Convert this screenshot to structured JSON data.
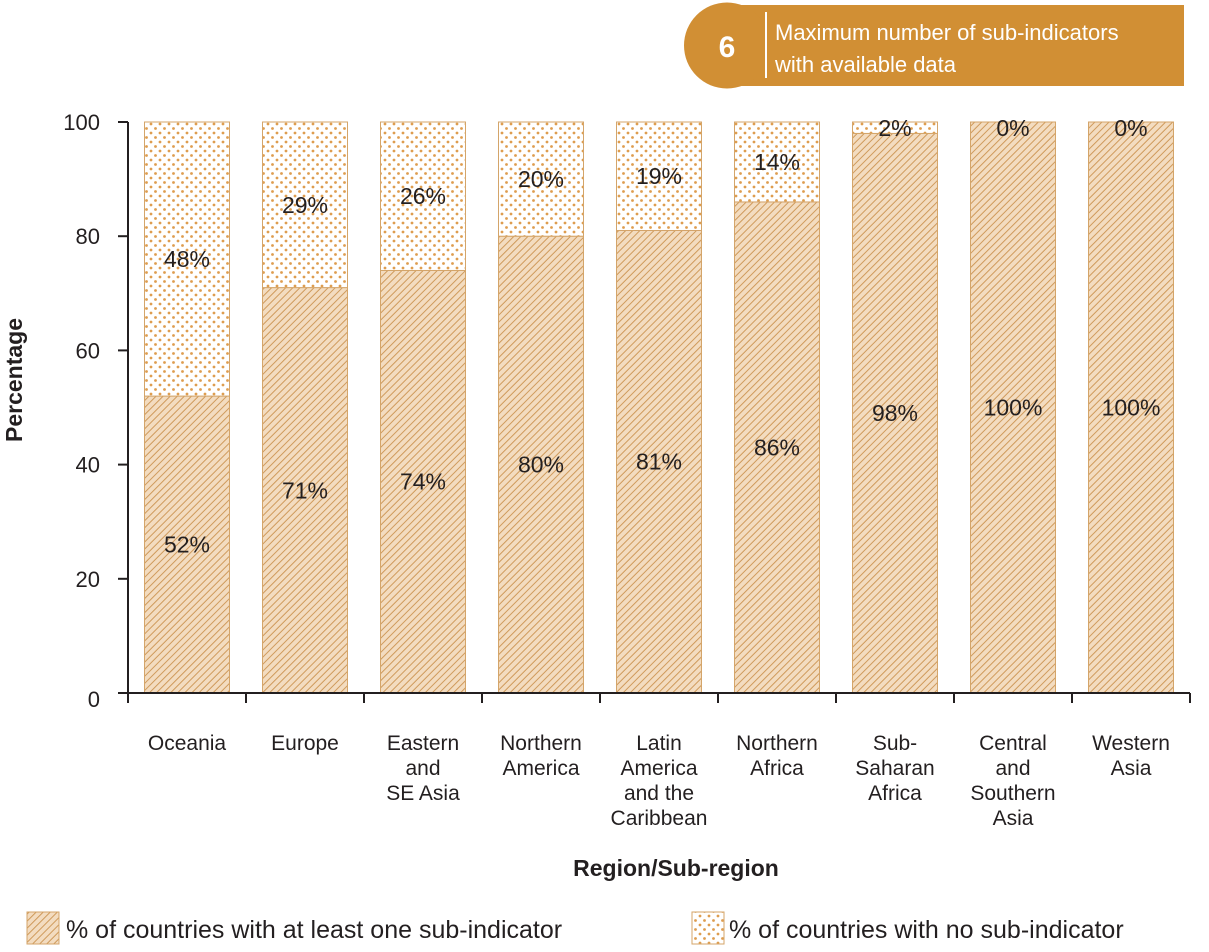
{
  "banner": {
    "number": "6",
    "line1": "Maximum number of sub-indicators",
    "line2": "with available data"
  },
  "colors": {
    "accent": "#d18f34",
    "hatch": "#d4a56a",
    "dots": "#de9d4f",
    "axis": "#231f20"
  },
  "chart_data": {
    "type": "bar",
    "stacked": true,
    "ylabel": "Percentage",
    "xlabel": "Region/Sub-region",
    "ylim": [
      0,
      100
    ],
    "yticks": [
      "0",
      "20",
      "40",
      "60",
      "80",
      "100"
    ],
    "categories": [
      [
        "Oceania"
      ],
      [
        "Europe"
      ],
      [
        "Eastern",
        "and",
        "SE Asia"
      ],
      [
        "Northern",
        "America"
      ],
      [
        "Latin",
        "America",
        "and the",
        "Caribbean"
      ],
      [
        "Northern",
        "Africa"
      ],
      [
        "Sub-",
        "Saharan",
        "Africa"
      ],
      [
        "Central",
        "and",
        "Southern",
        "Asia"
      ],
      [
        "Western",
        "Asia"
      ]
    ],
    "series": [
      {
        "name": "% of countries with at least one sub-indicator",
        "values": [
          52,
          71,
          74,
          80,
          81,
          86,
          98,
          100,
          100
        ],
        "labels": [
          "52%",
          "71%",
          "74%",
          "80%",
          "81%",
          "86%",
          "98%",
          "100%",
          "100%"
        ]
      },
      {
        "name": "% of countries with no sub-indicator",
        "values": [
          48,
          29,
          26,
          20,
          19,
          14,
          2,
          0,
          0
        ],
        "labels": [
          "48%",
          "29%",
          "26%",
          "20%",
          "19%",
          "14%",
          "2%",
          "0%",
          "0%"
        ]
      }
    ],
    "legend_position": "bottom"
  }
}
